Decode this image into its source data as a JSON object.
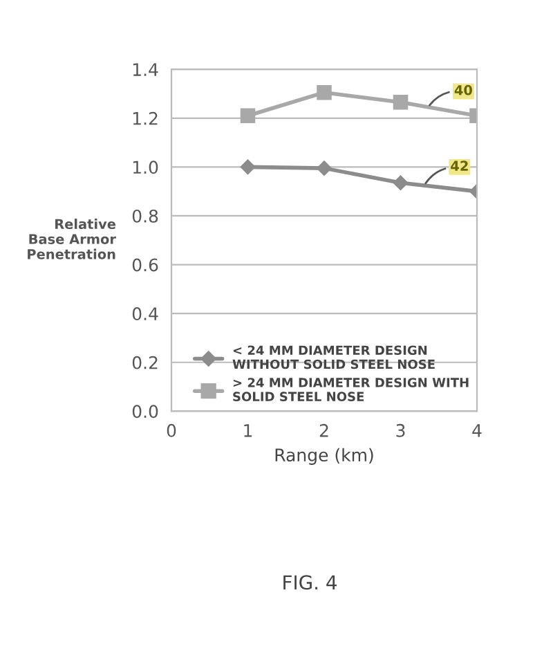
{
  "chart_data": {
    "type": "line",
    "ylabel": "Relative\nBase Armor\nPenetration",
    "xlabel": "Range (km)",
    "x": [
      1,
      2,
      3,
      4
    ],
    "series": [
      {
        "name": "< 24 MM DIAMETER DESIGN\nWITHOUT SOLID STEEL NOSE",
        "color": "#8c8c8c",
        "marker": "diamond",
        "values": [
          1.0,
          0.995,
          0.935,
          0.9
        ]
      },
      {
        "name": "> 24 MM DIAMETER DESIGN WITH\nSOLID STEEL NOSE",
        "color": "#a8a8a8",
        "marker": "square",
        "values": [
          1.21,
          1.305,
          1.265,
          1.21
        ]
      }
    ],
    "xlim": [
      0,
      4
    ],
    "xticks": [
      0,
      1,
      2,
      3,
      4
    ],
    "ylim": [
      0,
      1.4
    ],
    "yticks": [
      {
        "value": 0,
        "label": "0.0"
      },
      0.2,
      0.4,
      0.6,
      0.8,
      {
        "value": 1.0,
        "label": "1.0"
      },
      1.2,
      1.4
    ],
    "grid": "y",
    "legend": "bottom right",
    "annotations": [
      {
        "text": "40",
        "x": 3.35,
        "y": 1.24
      },
      {
        "text": "42",
        "x": 3.3,
        "y": 0.92
      },
      "FIG. 4"
    ]
  }
}
